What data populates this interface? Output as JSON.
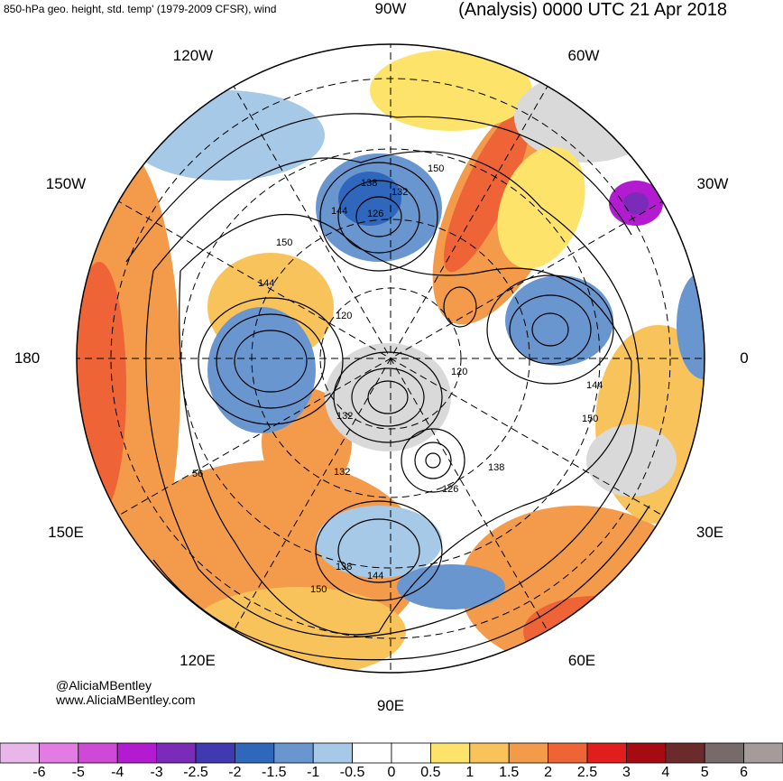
{
  "header": {
    "title_left": "850-hPa geo. height, std. temp' (1979-2009 CFSR), wind",
    "title_right": "(Analysis) 0000 UTC 21 Apr 2018"
  },
  "longitude_labels": {
    "top": "90W",
    "top_left": "120W",
    "top_right": "60W",
    "upper_left": "150W",
    "upper_right": "30W",
    "left": "180",
    "right": "0",
    "lower_left": "150E",
    "lower_right": "30E",
    "bottom_left": "120E",
    "bottom_right": "60E",
    "bottom": "90E"
  },
  "contour_labels": [
    "150",
    "138",
    "132",
    "144",
    "126",
    "150",
    "144",
    "120",
    "120",
    "144",
    "150",
    "138",
    "126",
    "132",
    "56",
    "132",
    "138",
    "144",
    "150"
  ],
  "credits": {
    "handle": "@AliciaMBentley",
    "website": "www.AliciaMBentley.com"
  },
  "colorbar": {
    "colors": [
      "#e8b6e8",
      "#e27ce2",
      "#cf49d7",
      "#b21bcf",
      "#7a2bb8",
      "#3f3ab0",
      "#2f67bd",
      "#6a96d0",
      "#a7c9e8",
      "#ffffff",
      "#ffffff",
      "#fde36a",
      "#f8c35b",
      "#f39b4a",
      "#ee6436",
      "#e11d1d",
      "#a50b10",
      "#6b2b2b",
      "#776a6a",
      "#a69b9b"
    ],
    "ticks": [
      "-6",
      "-5",
      "-4",
      "-3",
      "-2.5",
      "-2",
      "-1.5",
      "-1",
      "-0.5",
      "0",
      "0.5",
      "1",
      "1.5",
      "2",
      "2.5",
      "3",
      "4",
      "5",
      "6"
    ]
  }
}
